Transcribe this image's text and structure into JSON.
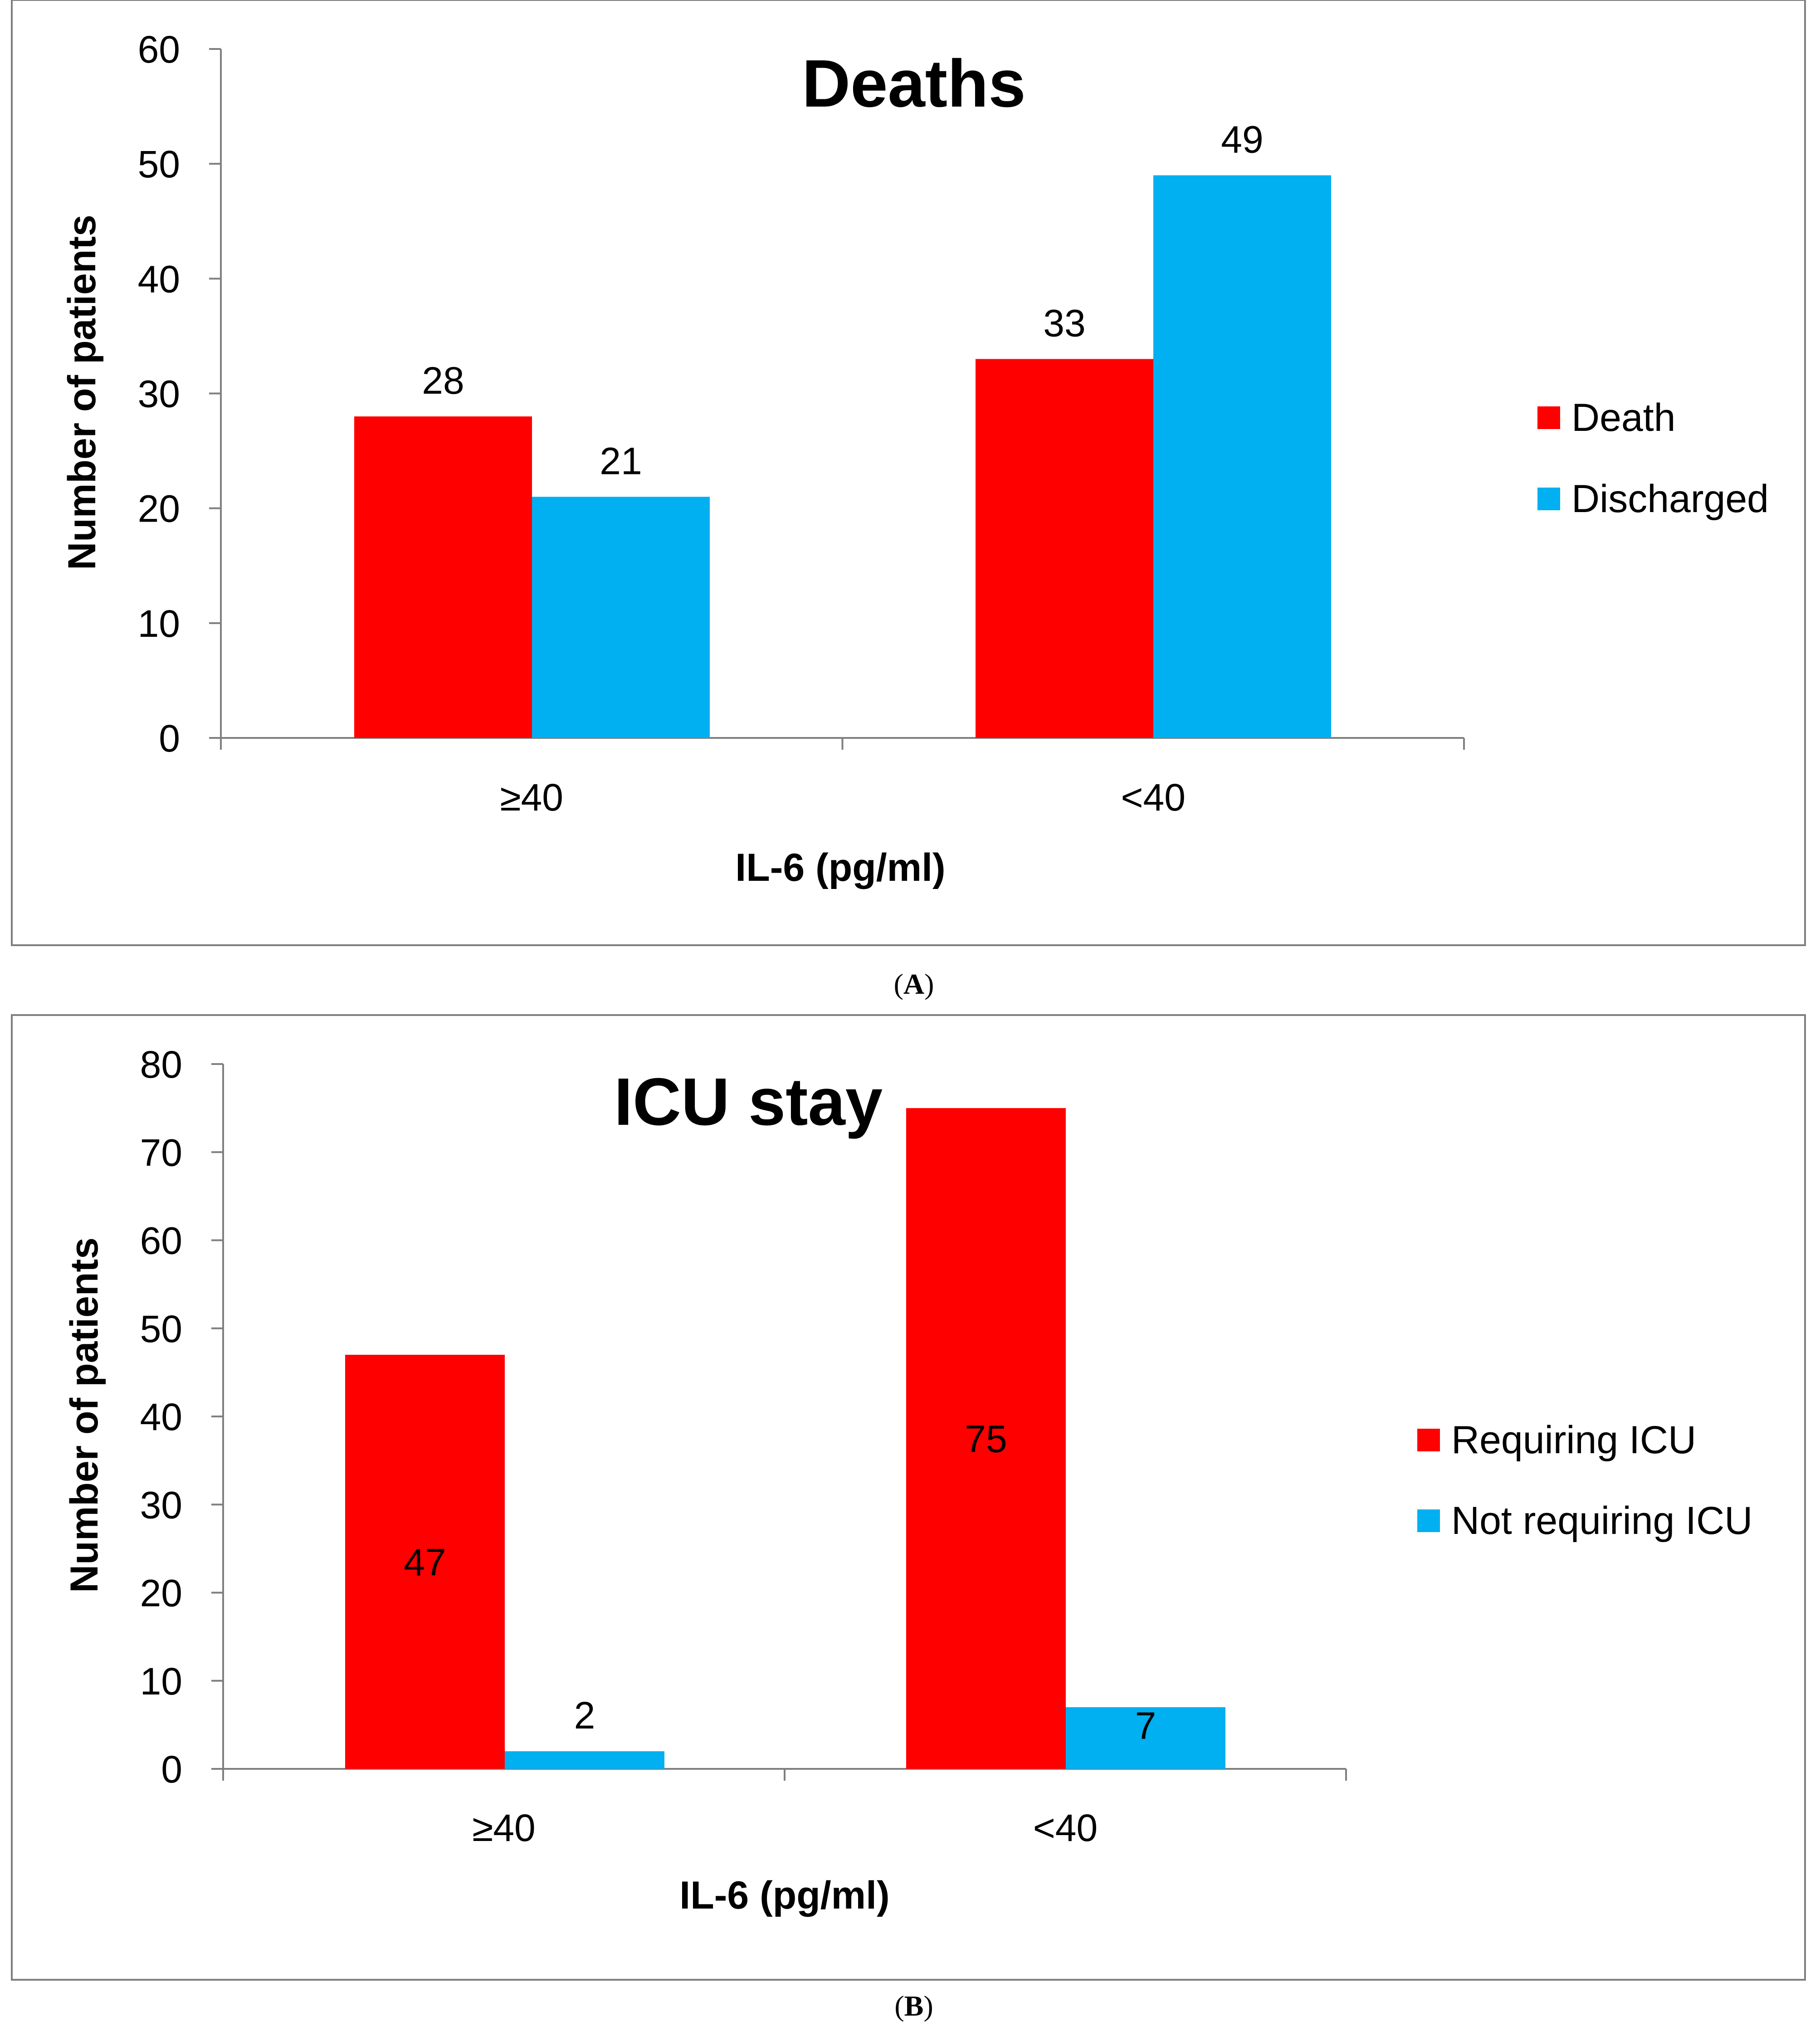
{
  "chart_data": [
    {
      "type": "bar",
      "title": "Deaths",
      "panel_label": "A",
      "xlabel": "IL-6 (pg/ml)",
      "ylabel": "Number of patients",
      "categories": [
        "≥40",
        "<40"
      ],
      "ylim": [
        0,
        60
      ],
      "yticks": [
        "0",
        "10",
        "20",
        "30",
        "40",
        "50",
        "60"
      ],
      "series": [
        {
          "name": "Death",
          "values": [
            28,
            33
          ],
          "color": "#ff0000"
        },
        {
          "name": "Discharged",
          "values": [
            21,
            49
          ],
          "color": "#00b0f0"
        }
      ],
      "data_labels": "above",
      "grid": false,
      "legend_position": "right"
    },
    {
      "type": "bar",
      "title": "ICU stay",
      "panel_label": "B",
      "xlabel": "IL-6 (pg/ml)",
      "ylabel": "Number of patients",
      "categories": [
        "≥40",
        "<40"
      ],
      "ylim": [
        0,
        80
      ],
      "yticks": [
        "0",
        "10",
        "20",
        "30",
        "40",
        "50",
        "60",
        "70",
        "80"
      ],
      "series": [
        {
          "name": "Requiring ICU",
          "values": [
            47,
            75
          ],
          "color": "#ff0000"
        },
        {
          "name": "Not requiring ICU",
          "values": [
            2,
            7
          ],
          "color": "#00b0f0"
        }
      ],
      "data_labels": "mixed",
      "grid": false,
      "legend_position": "right"
    }
  ]
}
